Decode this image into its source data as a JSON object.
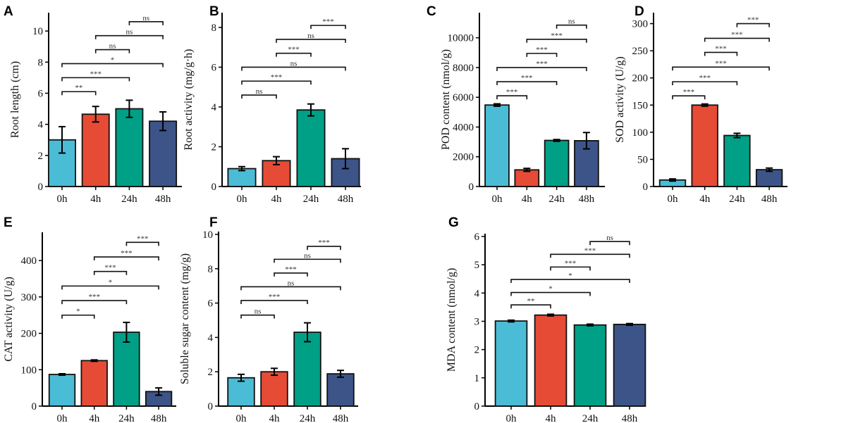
{
  "chart_data": [
    {
      "panel": "A",
      "type": "bar",
      "ylabel": "Root length (cm)",
      "categories": [
        "0h",
        "4h",
        "24h",
        "48h"
      ],
      "values": [
        3.0,
        4.65,
        5.0,
        4.2
      ],
      "errors": [
        0.85,
        0.5,
        0.55,
        0.6
      ],
      "ylim": [
        0,
        11
      ],
      "yticks": [
        0,
        2,
        4,
        6,
        8,
        10
      ],
      "comparisons": [
        {
          "pair": [
            0,
            1
          ],
          "y": 6.1,
          "label": "**"
        },
        {
          "pair": [
            0,
            2
          ],
          "y": 7.0,
          "label": "***"
        },
        {
          "pair": [
            0,
            3
          ],
          "y": 7.9,
          "label": "*"
        },
        {
          "pair": [
            1,
            2
          ],
          "y": 8.8,
          "label": "ns"
        },
        {
          "pair": [
            1,
            3
          ],
          "y": 9.7,
          "label": "ns"
        },
        {
          "pair": [
            2,
            3
          ],
          "y": 10.6,
          "label": "ns"
        }
      ]
    },
    {
      "panel": "B",
      "type": "bar",
      "ylabel": "Root activity (mg/g·h)",
      "categories": [
        "0h",
        "4h",
        "24h",
        "48h"
      ],
      "values": [
        0.9,
        1.3,
        3.85,
        1.4
      ],
      "errors": [
        0.1,
        0.2,
        0.3,
        0.5
      ],
      "ylim": [
        0,
        8.6
      ],
      "yticks": [
        0,
        2,
        4,
        6,
        8
      ],
      "comparisons": [
        {
          "pair": [
            0,
            1
          ],
          "y": 4.6,
          "label": "ns"
        },
        {
          "pair": [
            0,
            2
          ],
          "y": 5.3,
          "label": "***"
        },
        {
          "pair": [
            0,
            3
          ],
          "y": 6.0,
          "label": "ns"
        },
        {
          "pair": [
            1,
            2
          ],
          "y": 6.7,
          "label": "***"
        },
        {
          "pair": [
            1,
            3
          ],
          "y": 7.4,
          "label": "ns"
        },
        {
          "pair": [
            2,
            3
          ],
          "y": 8.1,
          "label": "***"
        }
      ]
    },
    {
      "panel": "C",
      "type": "bar",
      "ylabel": "POD content (nmol/g)",
      "categories": [
        "0h",
        "4h",
        "24h",
        "48h"
      ],
      "values": [
        5480,
        1120,
        3100,
        3080
      ],
      "errors": [
        80,
        100,
        60,
        550
      ],
      "ylim": [
        0,
        11500
      ],
      "yticks": [
        0,
        2000,
        4000,
        6000,
        8000,
        10000
      ],
      "comparisons": [
        {
          "pair": [
            0,
            1
          ],
          "y": 6100,
          "label": "***"
        },
        {
          "pair": [
            0,
            2
          ],
          "y": 7050,
          "label": "***"
        },
        {
          "pair": [
            0,
            3
          ],
          "y": 8000,
          "label": "***"
        },
        {
          "pair": [
            1,
            2
          ],
          "y": 8950,
          "label": "***"
        },
        {
          "pair": [
            1,
            3
          ],
          "y": 9900,
          "label": "***"
        },
        {
          "pair": [
            2,
            3
          ],
          "y": 10850,
          "label": "ns"
        }
      ]
    },
    {
      "panel": "D",
      "type": "bar",
      "ylabel": "SOD activity (U/g)",
      "categories": [
        "0h",
        "4h",
        "24h",
        "48h"
      ],
      "values": [
        12,
        150,
        94,
        31
      ],
      "errors": [
        2,
        2,
        4,
        3
      ],
      "ylim": [
        0,
        315
      ],
      "yticks": [
        0,
        50,
        100,
        150,
        200,
        250,
        300
      ],
      "comparisons": [
        {
          "pair": [
            0,
            1
          ],
          "y": 167,
          "label": "***"
        },
        {
          "pair": [
            0,
            2
          ],
          "y": 193,
          "label": "***"
        },
        {
          "pair": [
            0,
            3
          ],
          "y": 220,
          "label": "***"
        },
        {
          "pair": [
            1,
            2
          ],
          "y": 247,
          "label": "***"
        },
        {
          "pair": [
            1,
            3
          ],
          "y": 273,
          "label": "***"
        },
        {
          "pair": [
            2,
            3
          ],
          "y": 300,
          "label": "***"
        }
      ]
    },
    {
      "panel": "E",
      "type": "bar",
      "ylabel": "CAT activity (U/g)",
      "categories": [
        "0h",
        "4h",
        "24h",
        "48h"
      ],
      "values": [
        87,
        125,
        203,
        40
      ],
      "errors": [
        2,
        2,
        27,
        10
      ],
      "ylim": [
        0,
        470
      ],
      "yticks": [
        0,
        100,
        200,
        300,
        400
      ],
      "comparisons": [
        {
          "pair": [
            0,
            1
          ],
          "y": 250,
          "label": "*"
        },
        {
          "pair": [
            0,
            2
          ],
          "y": 290,
          "label": "***"
        },
        {
          "pair": [
            0,
            3
          ],
          "y": 330,
          "label": "*"
        },
        {
          "pair": [
            1,
            2
          ],
          "y": 370,
          "label": "***"
        },
        {
          "pair": [
            1,
            3
          ],
          "y": 410,
          "label": "***"
        },
        {
          "pair": [
            2,
            3
          ],
          "y": 450,
          "label": "***"
        }
      ]
    },
    {
      "panel": "F",
      "type": "bar",
      "ylabel": "Soluble sugar content (mg/g)",
      "categories": [
        "0h",
        "4h",
        "24h",
        "48h"
      ],
      "values": [
        1.65,
        2.0,
        4.3,
        1.88
      ],
      "errors": [
        0.2,
        0.2,
        0.55,
        0.2
      ],
      "ylim": [
        0,
        10
      ],
      "yticks": [
        0,
        2,
        4,
        6,
        8,
        10
      ],
      "comparisons": [
        {
          "pair": [
            0,
            1
          ],
          "y": 5.3,
          "label": "ns"
        },
        {
          "pair": [
            0,
            2
          ],
          "y": 6.15,
          "label": "***"
        },
        {
          "pair": [
            0,
            3
          ],
          "y": 6.95,
          "label": "ns"
        },
        {
          "pair": [
            1,
            2
          ],
          "y": 7.75,
          "label": "***"
        },
        {
          "pair": [
            1,
            3
          ],
          "y": 8.55,
          "label": "ns"
        },
        {
          "pair": [
            2,
            3
          ],
          "y": 9.3,
          "label": "***"
        }
      ]
    },
    {
      "panel": "G",
      "type": "bar",
      "ylabel": "MDA content (nmol/g)",
      "categories": [
        "0h",
        "4h",
        "24h",
        "48h"
      ],
      "values": [
        3.01,
        3.22,
        2.87,
        2.89
      ],
      "errors": [
        0.03,
        0.03,
        0.03,
        0.03
      ],
      "ylim": [
        0,
        6
      ],
      "yticks": [
        0,
        1,
        2,
        3,
        4,
        5,
        6
      ],
      "comparisons": [
        {
          "pair": [
            0,
            1
          ],
          "y": 3.58,
          "label": "**"
        },
        {
          "pair": [
            0,
            2
          ],
          "y": 4.02,
          "label": "*"
        },
        {
          "pair": [
            0,
            3
          ],
          "y": 4.48,
          "label": "*"
        },
        {
          "pair": [
            1,
            2
          ],
          "y": 4.92,
          "label": "***"
        },
        {
          "pair": [
            1,
            3
          ],
          "y": 5.37,
          "label": "***"
        },
        {
          "pair": [
            2,
            3
          ],
          "y": 5.82,
          "label": "ns"
        }
      ]
    }
  ],
  "colors": {
    "0h": "#4bbcd6",
    "4h": "#e64b35",
    "24h": "#00a087",
    "48h": "#3c5488"
  }
}
